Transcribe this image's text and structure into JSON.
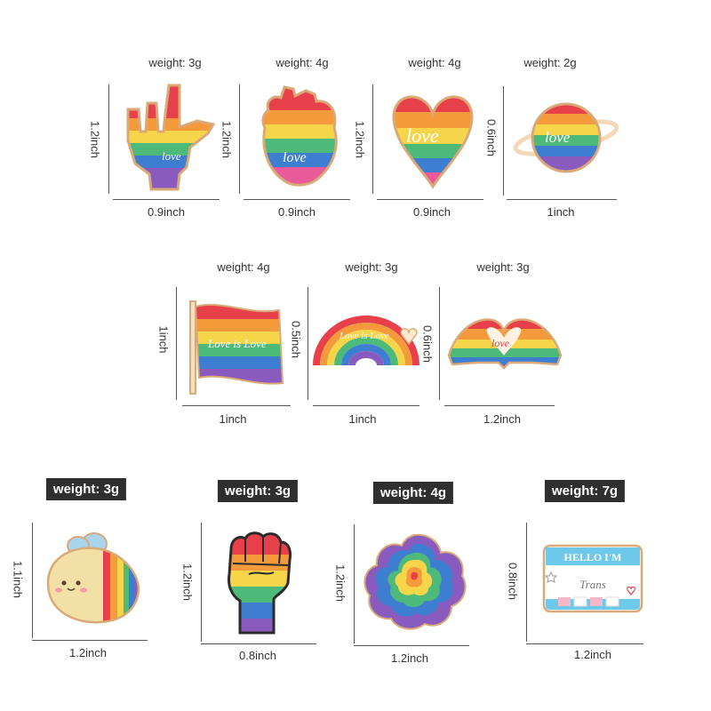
{
  "pins": [
    {
      "name": "love-sign-hand",
      "weight": "weight: 3g",
      "height": "1.2inch",
      "width": "0.9inch"
    },
    {
      "name": "rainbow-anatomical-heart",
      "weight": "weight: 4g",
      "height": "1.2inch",
      "width": "0.9inch"
    },
    {
      "name": "rainbow-love-heart",
      "weight": "weight: 4g",
      "height": "1.2inch",
      "width": "0.9inch"
    },
    {
      "name": "rainbow-planet",
      "weight": "weight: 2g",
      "height": "0.6inch",
      "width": "1inch"
    },
    {
      "name": "love-is-love-flag",
      "weight": "weight: 4g",
      "height": "1inch",
      "width": "1inch"
    },
    {
      "name": "love-is-love-rainbow",
      "weight": "weight: 3g",
      "height": "0.5inch",
      "width": "1inch"
    },
    {
      "name": "heart-hands",
      "weight": "weight: 3g",
      "height": "0.6inch",
      "width": "1.2inch"
    },
    {
      "name": "rainbow-bee",
      "weight": "weight: 3g",
      "height": "1.1inch",
      "width": "1.2inch"
    },
    {
      "name": "rainbow-fist",
      "weight": "weight: 3g",
      "height": "1.2inch",
      "width": "0.8inch"
    },
    {
      "name": "rainbow-rose",
      "weight": "weight: 4g",
      "height": "1.2inch",
      "width": "1.2inch"
    },
    {
      "name": "hello-im-trans-badge",
      "weight": "weight: 7g",
      "height": "0.8inch",
      "width": "1.2inch"
    }
  ],
  "pin_text": {
    "love": "love",
    "love_is_love": "Love is Love",
    "hello": "HELLO I'M",
    "trans": "Trans"
  },
  "colors": {
    "red": "#e8404a",
    "orange": "#f49a3a",
    "yellow": "#f7d54a",
    "green": "#4dba7a",
    "blue": "#3e7ed0",
    "purple": "#8a5bbf",
    "outline": "#d9a977",
    "badge_bg": "#2f2f2f"
  }
}
